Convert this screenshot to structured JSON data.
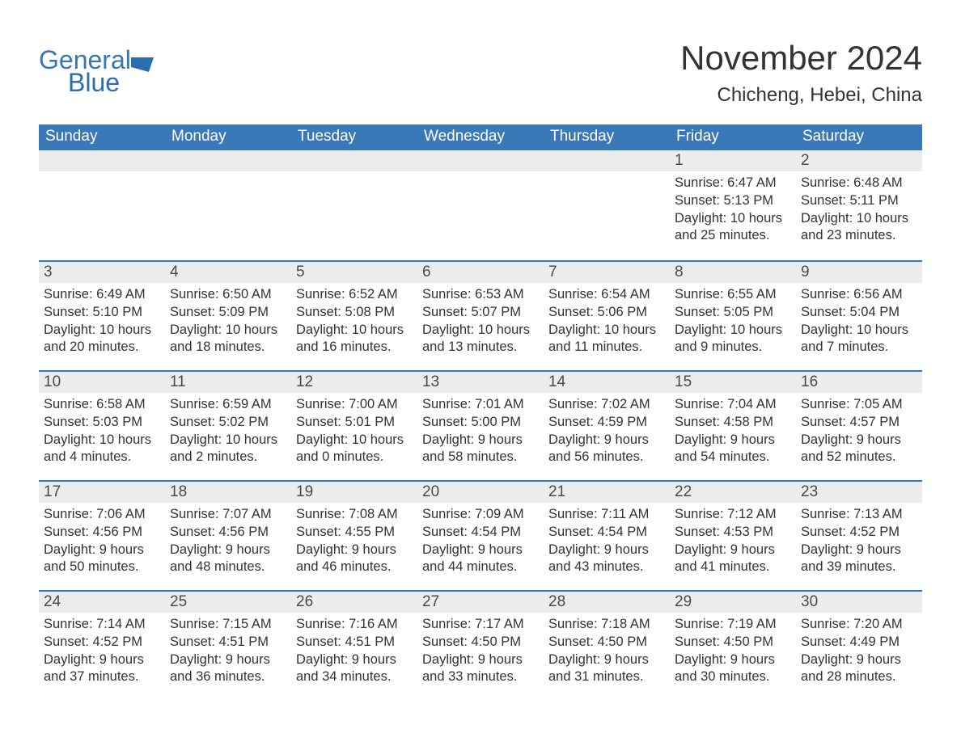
{
  "brand": {
    "name_general": "General",
    "name_blue": "Blue"
  },
  "title": "November 2024",
  "location": "Chicheng, Hebei, China",
  "colors": {
    "header_bg": "#3a78b8",
    "header_text": "#ffffff",
    "daynum_bg": "#ececec",
    "border": "#3a78b8",
    "body_text": "#333333",
    "brand": "#3a75b5",
    "background": "#ffffff"
  },
  "fonts": {
    "title_size_pt": 32,
    "location_size_pt": 18,
    "weekday_size_pt": 14,
    "daynum_size_pt": 14,
    "body_size_pt": 12.5
  },
  "weekdays": [
    "Sunday",
    "Monday",
    "Tuesday",
    "Wednesday",
    "Thursday",
    "Friday",
    "Saturday"
  ],
  "weeks": [
    [
      {
        "day": null
      },
      {
        "day": null
      },
      {
        "day": null
      },
      {
        "day": null
      },
      {
        "day": null
      },
      {
        "day": "1",
        "sunrise": "Sunrise: 6:47 AM",
        "sunset": "Sunset: 5:13 PM",
        "daylight1": "Daylight: 10 hours",
        "daylight2": "and 25 minutes."
      },
      {
        "day": "2",
        "sunrise": "Sunrise: 6:48 AM",
        "sunset": "Sunset: 5:11 PM",
        "daylight1": "Daylight: 10 hours",
        "daylight2": "and 23 minutes."
      }
    ],
    [
      {
        "day": "3",
        "sunrise": "Sunrise: 6:49 AM",
        "sunset": "Sunset: 5:10 PM",
        "daylight1": "Daylight: 10 hours",
        "daylight2": "and 20 minutes."
      },
      {
        "day": "4",
        "sunrise": "Sunrise: 6:50 AM",
        "sunset": "Sunset: 5:09 PM",
        "daylight1": "Daylight: 10 hours",
        "daylight2": "and 18 minutes."
      },
      {
        "day": "5",
        "sunrise": "Sunrise: 6:52 AM",
        "sunset": "Sunset: 5:08 PM",
        "daylight1": "Daylight: 10 hours",
        "daylight2": "and 16 minutes."
      },
      {
        "day": "6",
        "sunrise": "Sunrise: 6:53 AM",
        "sunset": "Sunset: 5:07 PM",
        "daylight1": "Daylight: 10 hours",
        "daylight2": "and 13 minutes."
      },
      {
        "day": "7",
        "sunrise": "Sunrise: 6:54 AM",
        "sunset": "Sunset: 5:06 PM",
        "daylight1": "Daylight: 10 hours",
        "daylight2": "and 11 minutes."
      },
      {
        "day": "8",
        "sunrise": "Sunrise: 6:55 AM",
        "sunset": "Sunset: 5:05 PM",
        "daylight1": "Daylight: 10 hours",
        "daylight2": "and 9 minutes."
      },
      {
        "day": "9",
        "sunrise": "Sunrise: 6:56 AM",
        "sunset": "Sunset: 5:04 PM",
        "daylight1": "Daylight: 10 hours",
        "daylight2": "and 7 minutes."
      }
    ],
    [
      {
        "day": "10",
        "sunrise": "Sunrise: 6:58 AM",
        "sunset": "Sunset: 5:03 PM",
        "daylight1": "Daylight: 10 hours",
        "daylight2": "and 4 minutes."
      },
      {
        "day": "11",
        "sunrise": "Sunrise: 6:59 AM",
        "sunset": "Sunset: 5:02 PM",
        "daylight1": "Daylight: 10 hours",
        "daylight2": "and 2 minutes."
      },
      {
        "day": "12",
        "sunrise": "Sunrise: 7:00 AM",
        "sunset": "Sunset: 5:01 PM",
        "daylight1": "Daylight: 10 hours",
        "daylight2": "and 0 minutes."
      },
      {
        "day": "13",
        "sunrise": "Sunrise: 7:01 AM",
        "sunset": "Sunset: 5:00 PM",
        "daylight1": "Daylight: 9 hours",
        "daylight2": "and 58 minutes."
      },
      {
        "day": "14",
        "sunrise": "Sunrise: 7:02 AM",
        "sunset": "Sunset: 4:59 PM",
        "daylight1": "Daylight: 9 hours",
        "daylight2": "and 56 minutes."
      },
      {
        "day": "15",
        "sunrise": "Sunrise: 7:04 AM",
        "sunset": "Sunset: 4:58 PM",
        "daylight1": "Daylight: 9 hours",
        "daylight2": "and 54 minutes."
      },
      {
        "day": "16",
        "sunrise": "Sunrise: 7:05 AM",
        "sunset": "Sunset: 4:57 PM",
        "daylight1": "Daylight: 9 hours",
        "daylight2": "and 52 minutes."
      }
    ],
    [
      {
        "day": "17",
        "sunrise": "Sunrise: 7:06 AM",
        "sunset": "Sunset: 4:56 PM",
        "daylight1": "Daylight: 9 hours",
        "daylight2": "and 50 minutes."
      },
      {
        "day": "18",
        "sunrise": "Sunrise: 7:07 AM",
        "sunset": "Sunset: 4:56 PM",
        "daylight1": "Daylight: 9 hours",
        "daylight2": "and 48 minutes."
      },
      {
        "day": "19",
        "sunrise": "Sunrise: 7:08 AM",
        "sunset": "Sunset: 4:55 PM",
        "daylight1": "Daylight: 9 hours",
        "daylight2": "and 46 minutes."
      },
      {
        "day": "20",
        "sunrise": "Sunrise: 7:09 AM",
        "sunset": "Sunset: 4:54 PM",
        "daylight1": "Daylight: 9 hours",
        "daylight2": "and 44 minutes."
      },
      {
        "day": "21",
        "sunrise": "Sunrise: 7:11 AM",
        "sunset": "Sunset: 4:54 PM",
        "daylight1": "Daylight: 9 hours",
        "daylight2": "and 43 minutes."
      },
      {
        "day": "22",
        "sunrise": "Sunrise: 7:12 AM",
        "sunset": "Sunset: 4:53 PM",
        "daylight1": "Daylight: 9 hours",
        "daylight2": "and 41 minutes."
      },
      {
        "day": "23",
        "sunrise": "Sunrise: 7:13 AM",
        "sunset": "Sunset: 4:52 PM",
        "daylight1": "Daylight: 9 hours",
        "daylight2": "and 39 minutes."
      }
    ],
    [
      {
        "day": "24",
        "sunrise": "Sunrise: 7:14 AM",
        "sunset": "Sunset: 4:52 PM",
        "daylight1": "Daylight: 9 hours",
        "daylight2": "and 37 minutes."
      },
      {
        "day": "25",
        "sunrise": "Sunrise: 7:15 AM",
        "sunset": "Sunset: 4:51 PM",
        "daylight1": "Daylight: 9 hours",
        "daylight2": "and 36 minutes."
      },
      {
        "day": "26",
        "sunrise": "Sunrise: 7:16 AM",
        "sunset": "Sunset: 4:51 PM",
        "daylight1": "Daylight: 9 hours",
        "daylight2": "and 34 minutes."
      },
      {
        "day": "27",
        "sunrise": "Sunrise: 7:17 AM",
        "sunset": "Sunset: 4:50 PM",
        "daylight1": "Daylight: 9 hours",
        "daylight2": "and 33 minutes."
      },
      {
        "day": "28",
        "sunrise": "Sunrise: 7:18 AM",
        "sunset": "Sunset: 4:50 PM",
        "daylight1": "Daylight: 9 hours",
        "daylight2": "and 31 minutes."
      },
      {
        "day": "29",
        "sunrise": "Sunrise: 7:19 AM",
        "sunset": "Sunset: 4:50 PM",
        "daylight1": "Daylight: 9 hours",
        "daylight2": "and 30 minutes."
      },
      {
        "day": "30",
        "sunrise": "Sunrise: 7:20 AM",
        "sunset": "Sunset: 4:49 PM",
        "daylight1": "Daylight: 9 hours",
        "daylight2": "and 28 minutes."
      }
    ]
  ]
}
